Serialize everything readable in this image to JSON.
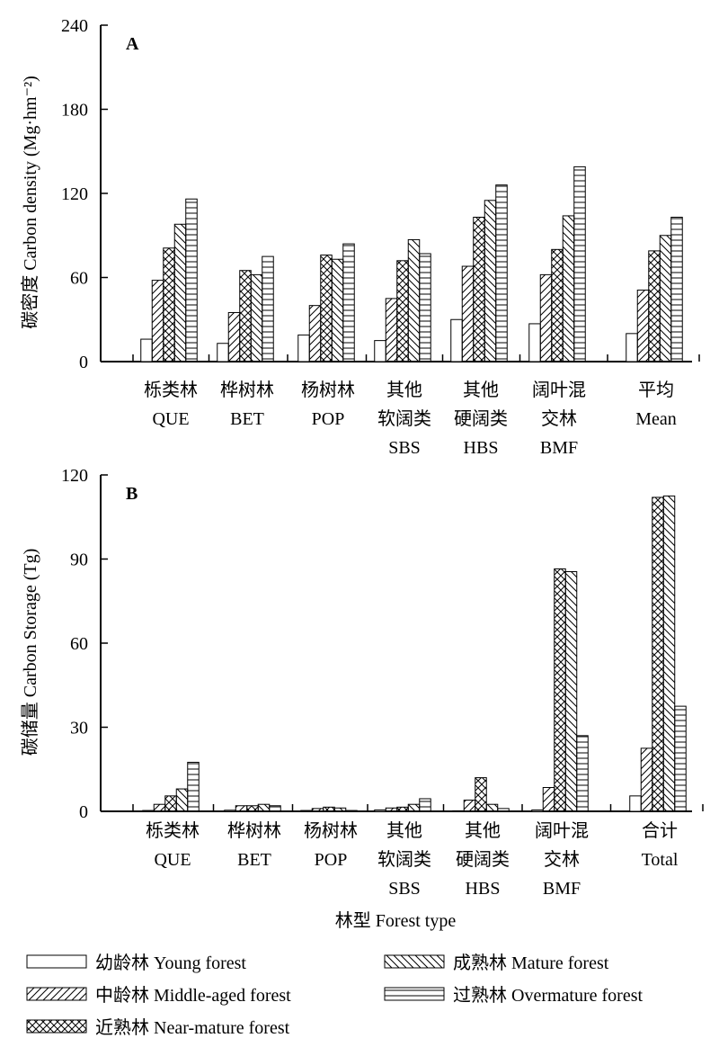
{
  "legend": [
    {
      "label": "幼龄林 Young forest",
      "pattern": "none"
    },
    {
      "label": "中龄林 Middle-aged forest",
      "pattern": "fdiag"
    },
    {
      "label": "近熟林 Near-mature forest",
      "pattern": "cross"
    },
    {
      "label": "成熟林 Mature forest",
      "pattern": "bdiag"
    },
    {
      "label": "过熟林 Overmature forest",
      "pattern": "horiz"
    }
  ],
  "chart_data": [
    {
      "type": "bar",
      "panel_label": "A",
      "ylabel": "碳密度 Carbon density (Mg·hm⁻²)",
      "xlabel": "",
      "ylim": [
        0,
        240
      ],
      "yticks": [
        0,
        60,
        120,
        180,
        240
      ],
      "categories": [
        [
          "栎类林",
          "QUE"
        ],
        [
          "桦树林",
          "BET"
        ],
        [
          "杨树林",
          "POP"
        ],
        [
          "其他",
          "软阔类",
          "SBS"
        ],
        [
          "其他",
          "硬阔类",
          "HBS"
        ],
        [
          "阔叶混",
          "交林",
          "BMF"
        ],
        [
          "平均",
          "Mean"
        ]
      ],
      "series": [
        {
          "name": "幼龄林 Young forest",
          "values": [
            16,
            13,
            19,
            15,
            30,
            27,
            20
          ]
        },
        {
          "name": "中龄林 Middle-aged forest",
          "values": [
            58,
            35,
            40,
            45,
            68,
            62,
            51
          ]
        },
        {
          "name": "近熟林 Near-mature forest",
          "values": [
            81,
            65,
            76,
            72,
            103,
            80,
            79
          ]
        },
        {
          "name": "成熟林 Mature forest",
          "values": [
            98,
            62,
            73,
            87,
            115,
            104,
            90
          ]
        },
        {
          "name": "过熟林 Overmature forest",
          "values": [
            116,
            75,
            84,
            77,
            126,
            139,
            103
          ]
        }
      ]
    },
    {
      "type": "bar",
      "panel_label": "B",
      "ylabel": "碳储量 Carbon Storage (Tg)",
      "xlabel": "林型  Forest type",
      "ylim": [
        0,
        120
      ],
      "yticks": [
        0,
        30,
        60,
        90,
        120
      ],
      "categories": [
        [
          "栎类林",
          "QUE"
        ],
        [
          "桦树林",
          "BET"
        ],
        [
          "杨树林",
          "POP"
        ],
        [
          "其他",
          "软阔类",
          "SBS"
        ],
        [
          "其他",
          "硬阔类",
          "HBS"
        ],
        [
          "阔叶混",
          "交林",
          "BMF"
        ],
        [
          "合计",
          "Total"
        ]
      ],
      "series": [
        {
          "name": "幼龄林 Young forest",
          "values": [
            0.3,
            0.4,
            0.3,
            0.5,
            0.2,
            0.5,
            5.5
          ]
        },
        {
          "name": "中龄林 Middle-aged forest",
          "values": [
            2.5,
            2.0,
            1.0,
            1.2,
            4.0,
            8.5,
            22.5
          ]
        },
        {
          "name": "近熟林 Near-mature forest",
          "values": [
            5.5,
            2.0,
            1.5,
            1.5,
            12.0,
            86.5,
            112.0
          ]
        },
        {
          "name": "成熟林 Mature forest",
          "values": [
            8.0,
            2.5,
            1.2,
            2.5,
            2.5,
            85.5,
            112.5
          ]
        },
        {
          "name": "过熟林 Overmature forest",
          "values": [
            17.5,
            2.0,
            0.3,
            4.5,
            1.0,
            27.0,
            37.5
          ]
        }
      ]
    }
  ]
}
